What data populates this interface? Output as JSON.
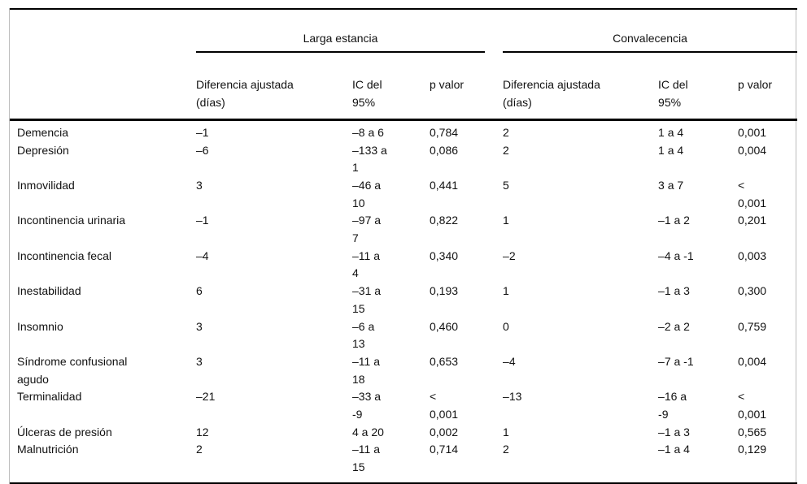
{
  "table": {
    "group_headers": [
      "Larga estancia",
      "Convalecencia"
    ],
    "sub_columns": [
      "Diferencia ajustada\n(días)",
      "IC del\n95%",
      "p valor",
      "Diferencia ajustada\n(días)",
      "IC del\n95%",
      "p valor"
    ],
    "rows": [
      {
        "label": "Demencia",
        "le_diff": "–1",
        "le_ic": "–8 a 6",
        "le_p": "0,784",
        "c_diff": "2",
        "c_ic": "1 a 4",
        "c_p": "0,001"
      },
      {
        "label": "Depresión",
        "le_diff": "–6",
        "le_ic": "–133 a\n1",
        "le_p": "0,086",
        "c_diff": "2",
        "c_ic": "1 a 4",
        "c_p": "0,004"
      },
      {
        "label": "Inmovilidad",
        "le_diff": "3",
        "le_ic": "–46 a\n10",
        "le_p": "0,441",
        "c_diff": "5",
        "c_ic": "3 a 7",
        "c_p": "<\n0,001"
      },
      {
        "label": "Incontinencia urinaria",
        "le_diff": "–1",
        "le_ic": "–97 a\n7",
        "le_p": "0,822",
        "c_diff": "1",
        "c_ic": "–1 a 2",
        "c_p": "0,201"
      },
      {
        "label": "Incontinencia fecal",
        "le_diff": "–4",
        "le_ic": "–11 a\n4",
        "le_p": "0,340",
        "c_diff": "–2",
        "c_ic": "–4 a -1",
        "c_p": "0,003"
      },
      {
        "label": "Inestabilidad",
        "le_diff": "6",
        "le_ic": "–31 a\n15",
        "le_p": "0,193",
        "c_diff": "1",
        "c_ic": "–1 a 3",
        "c_p": "0,300"
      },
      {
        "label": "Insomnio",
        "le_diff": "3",
        "le_ic": "–6 a\n13",
        "le_p": "0,460",
        "c_diff": "0",
        "c_ic": "–2 a 2",
        "c_p": "0,759"
      },
      {
        "label": "Síndrome confusional\nagudo",
        "le_diff": "3",
        "le_ic": "–11 a\n18",
        "le_p": "0,653",
        "c_diff": "–4",
        "c_ic": "–7 a -1",
        "c_p": "0,004"
      },
      {
        "label": "Terminalidad",
        "le_diff": "–21",
        "le_ic": "–33 a\n-9",
        "le_p": "<\n0,001",
        "c_diff": "–13",
        "c_ic": "–16 a\n-9",
        "c_p": "<\n0,001"
      },
      {
        "label": "Úlceras de presión",
        "le_diff": "12",
        "le_ic": "4 a 20",
        "le_p": "0,002",
        "c_diff": "1",
        "c_ic": "–1 a 3",
        "c_p": "0,565"
      },
      {
        "label": "Malnutrición",
        "le_diff": "2",
        "le_ic": "–11 a\n15",
        "le_p": "0,714",
        "c_diff": "2",
        "c_ic": "–1 a 4",
        "c_p": "0,129"
      }
    ]
  }
}
